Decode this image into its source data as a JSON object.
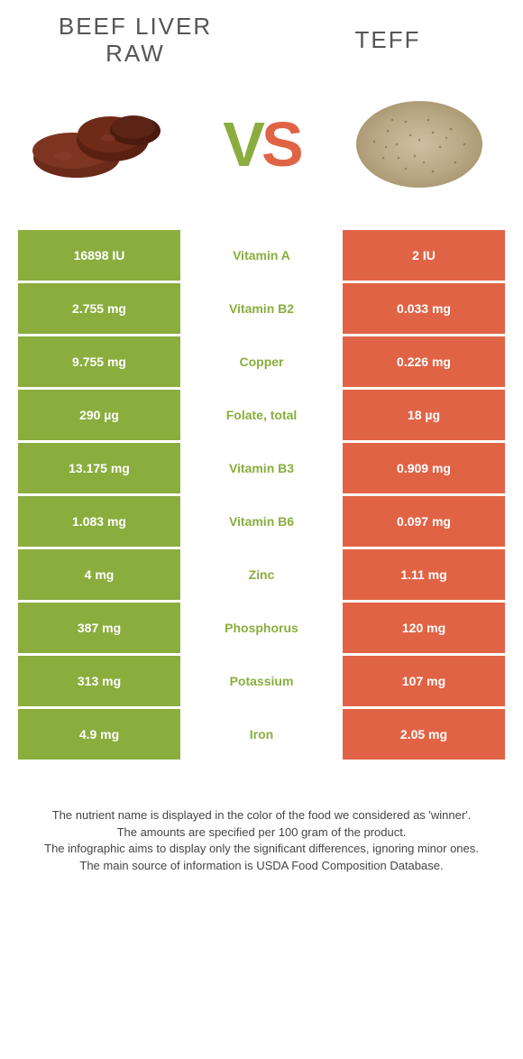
{
  "colors": {
    "green": "#8aad3e",
    "orange": "#e16345",
    "white": "#ffffff"
  },
  "food1": {
    "title": "Beef Liver raw"
  },
  "food2": {
    "title": "Teff"
  },
  "vs": {
    "v": "V",
    "s": "S"
  },
  "rows": [
    {
      "left": "16898 IU",
      "nutrient": "Vitamin A",
      "right": "2 IU",
      "winner": "left"
    },
    {
      "left": "2.755 mg",
      "nutrient": "Vitamin B2",
      "right": "0.033 mg",
      "winner": "left"
    },
    {
      "left": "9.755 mg",
      "nutrient": "Copper",
      "right": "0.226 mg",
      "winner": "left"
    },
    {
      "left": "290 µg",
      "nutrient": "Folate, total",
      "right": "18 µg",
      "winner": "left"
    },
    {
      "left": "13.175 mg",
      "nutrient": "Vitamin B3",
      "right": "0.909 mg",
      "winner": "left"
    },
    {
      "left": "1.083 mg",
      "nutrient": "Vitamin B6",
      "right": "0.097 mg",
      "winner": "left"
    },
    {
      "left": "4 mg",
      "nutrient": "Zinc",
      "right": "1.11 mg",
      "winner": "left"
    },
    {
      "left": "387 mg",
      "nutrient": "Phosphorus",
      "right": "120 mg",
      "winner": "left"
    },
    {
      "left": "313 mg",
      "nutrient": "Potassium",
      "right": "107 mg",
      "winner": "left"
    },
    {
      "left": "4.9 mg",
      "nutrient": "Iron",
      "right": "2.05 mg",
      "winner": "left"
    }
  ],
  "footer": {
    "line1": "The nutrient name is displayed in the color of the food we considered as 'winner'.",
    "line2": "The amounts are specified per 100 gram of the product.",
    "line3": "The infographic aims to display only the significant differences, ignoring minor ones.",
    "line4": "The main source of information is USDA Food Composition Database."
  }
}
